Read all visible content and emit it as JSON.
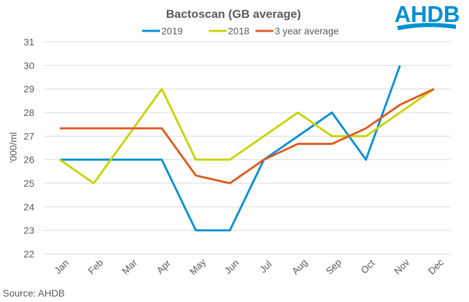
{
  "logo_text": "AHDB",
  "source": "Source: AHDB",
  "chart_data": {
    "type": "line",
    "title": "Bactoscan (GB average)",
    "xlabel": "",
    "ylabel": "'000/ml",
    "ylim": [
      22,
      31
    ],
    "yticks": [
      "22",
      "23",
      "24",
      "25",
      "26",
      "27",
      "28",
      "29",
      "30",
      "31"
    ],
    "grid": true,
    "legend_position": "top",
    "categories": [
      "Jan",
      "Feb",
      "Mar",
      "Apr",
      "May",
      "Jun",
      "Jul",
      "Aug",
      "Sep",
      "Oct",
      "Nov",
      "Dec"
    ],
    "series": [
      {
        "name": "2019",
        "color": "#0090d4",
        "values": [
          26,
          26,
          26,
          26,
          23,
          23,
          26,
          27,
          28,
          26,
          30,
          null
        ]
      },
      {
        "name": "2018",
        "color": "#c8d400",
        "values": [
          26,
          25,
          27,
          29,
          26,
          26,
          27,
          28,
          27,
          27,
          28,
          29
        ]
      },
      {
        "name": "3 year average",
        "color": "#e05a1c",
        "values": [
          27.33,
          27.33,
          27.33,
          27.33,
          25.33,
          25,
          26,
          26.67,
          26.67,
          27.33,
          28.33,
          29
        ]
      }
    ]
  }
}
